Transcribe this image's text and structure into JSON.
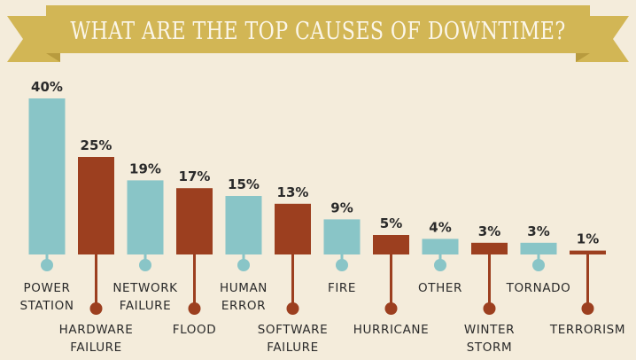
{
  "title": "WHAT ARE THE TOP CAUSES OF DOWNTIME?",
  "colors": {
    "background": "#f4ecdb",
    "banner": "#d2b655",
    "banner_dark": "#b89b3e",
    "teal": "#89c5c7",
    "rust": "#9c3f1f",
    "text": "#2a2a2a"
  },
  "chart_data": {
    "type": "bar",
    "title": "WHAT ARE THE TOP CAUSES OF DOWNTIME?",
    "categories": [
      [
        "POWER",
        "STATION"
      ],
      [
        "HARDWARE",
        "FAILURE"
      ],
      [
        "NETWORK",
        "FAILURE"
      ],
      [
        "FLOOD"
      ],
      [
        "HUMAN",
        "ERROR"
      ],
      [
        "SOFTWARE",
        "FAILURE"
      ],
      [
        "FIRE"
      ],
      [
        "HURRICANE"
      ],
      [
        "OTHER"
      ],
      [
        "WINTER",
        "STORM"
      ],
      [
        "TORNADO"
      ],
      [
        "TERRORISM"
      ]
    ],
    "values": [
      40,
      25,
      19,
      17,
      15,
      13,
      9,
      5,
      4,
      3,
      3,
      1
    ],
    "value_labels": [
      "40%",
      "25%",
      "19%",
      "17%",
      "15%",
      "13%",
      "9%",
      "5%",
      "4%",
      "3%",
      "3%",
      "1%"
    ],
    "bar_colors": [
      "teal",
      "rust",
      "teal",
      "rust",
      "teal",
      "rust",
      "teal",
      "rust",
      "teal",
      "rust",
      "teal",
      "rust"
    ],
    "label_position": [
      "upper",
      "lower",
      "upper",
      "lower",
      "upper",
      "lower",
      "upper",
      "lower",
      "upper",
      "lower",
      "upper",
      "lower"
    ],
    "ylim": [
      0,
      40
    ],
    "grid": false,
    "legend": "none"
  }
}
